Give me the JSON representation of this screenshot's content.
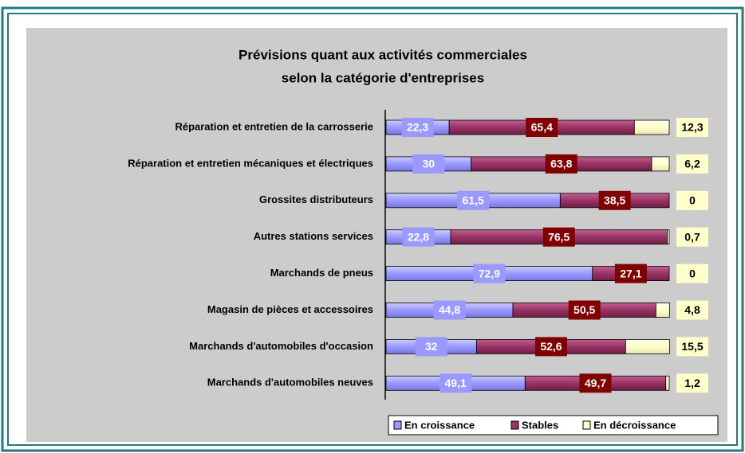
{
  "chart_data": {
    "type": "stacked_bar_horizontal",
    "title": [
      "Prévisions quant aux activités commerciales",
      "selon la catégorie d'entreprises"
    ],
    "categories": [
      "Réparation et entretien de la carrosserie",
      "Réparation et entretien mécaniques et électriques",
      "Grossites distributeurs",
      "Autres stations services",
      "Marchands de pneus",
      "Magasin de pièces et accessoires",
      "Marchands d'automobiles d'occasion",
      "Marchands d'automobiles neuves"
    ],
    "xlim": [
      0,
      100
    ],
    "legend": "bottom",
    "series": [
      {
        "name": "En croissance",
        "color": "#9999ff",
        "values": [
          22.3,
          30,
          61.5,
          22.8,
          72.9,
          44.8,
          32,
          49.1
        ],
        "value_labels": [
          "22,3",
          "30",
          "61,5",
          "22,8",
          "72,9",
          "44,8",
          "32",
          "49,1"
        ]
      },
      {
        "name": "Stables",
        "color": "#993366",
        "values": [
          65.4,
          63.8,
          38.5,
          76.5,
          27.1,
          50.5,
          52.6,
          49.7
        ],
        "value_labels": [
          "65,4",
          "63,8",
          "38,5",
          "76,5",
          "27,1",
          "50,5",
          "52,6",
          "49,7"
        ]
      },
      {
        "name": "En décroissance",
        "color": "#ffffcc",
        "values": [
          12.3,
          6.2,
          0,
          0.7,
          0,
          4.8,
          15.5,
          1.2
        ],
        "value_labels": [
          "12,3",
          "6,2",
          "0",
          "0,7",
          "0",
          "4,8",
          "15,5",
          "1,2"
        ]
      }
    ]
  }
}
